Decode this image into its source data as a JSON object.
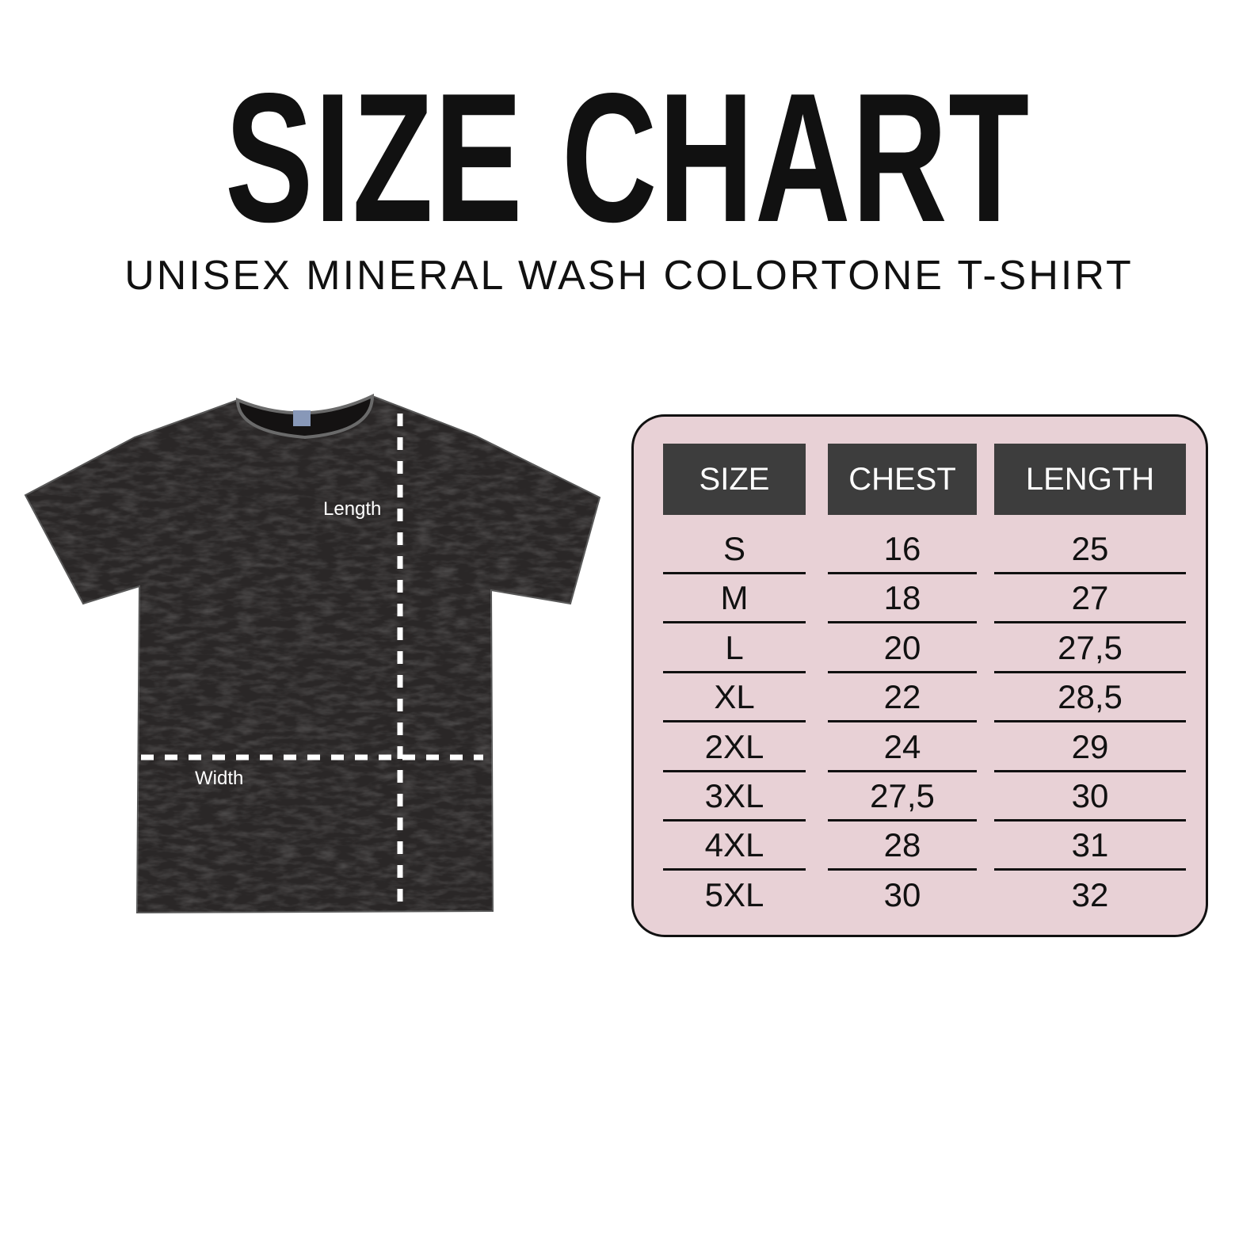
{
  "header": {
    "title": "SIZE CHART",
    "subtitle": "UNISEX MINERAL WASH COLORTONE T-SHIRT"
  },
  "diagram": {
    "length_label": "Length",
    "width_label": "Width",
    "shirt_color": "#2a2727",
    "dash_color": "#ffffff"
  },
  "table": {
    "background": "#e8d1d6",
    "header_color": "#3d3d3d",
    "columns": [
      "SIZE",
      "CHEST",
      "LENGTH"
    ],
    "rows": [
      [
        "S",
        "16",
        "25"
      ],
      [
        "M",
        "18",
        "27"
      ],
      [
        "L",
        "20",
        "27,5"
      ],
      [
        "XL",
        "22",
        "28,5"
      ],
      [
        "2XL",
        "24",
        "29"
      ],
      [
        "3XL",
        "27,5",
        "30"
      ],
      [
        "4XL",
        "28",
        "31"
      ],
      [
        "5XL",
        "30",
        "32"
      ]
    ]
  }
}
